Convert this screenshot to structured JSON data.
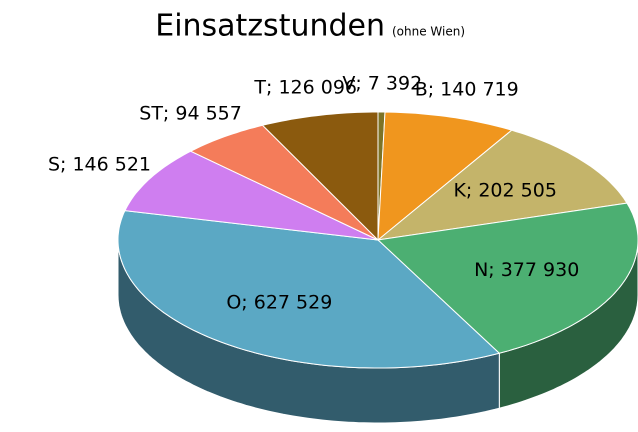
{
  "chart_data": {
    "type": "pie3d",
    "title": "Einsatzstunden",
    "subtitle": "(ohne Wien)",
    "values": [
      7392,
      140719,
      202505,
      377930,
      627529,
      146521,
      94557,
      126096
    ],
    "value_labels": [
      "V; 7 392",
      "B; 140 719",
      "K; 202 505",
      "N; 377 930",
      "O; 627 529",
      "S; 146 521",
      "ST; 94 557",
      "T; 126 096"
    ],
    "colors": [
      "#7d7326",
      "#f0961e",
      "#c4b46a",
      "#4caf72",
      "#5ba8c4",
      "#cf7ef0",
      "#f47c5a",
      "#8b5a0e"
    ]
  }
}
